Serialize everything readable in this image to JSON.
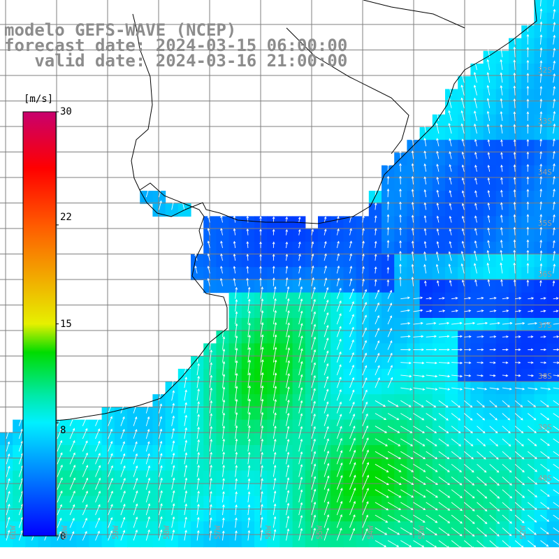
{
  "title": {
    "line1": "modelo GEFS-WAVE (NCEP)",
    "line2": "forecast date: 2024-03-15 06:00:00",
    "line3": "   valid date: 2024-03-16 21:00:00"
  },
  "colorbar": {
    "unit": "[m/s]",
    "ticks": [
      "30",
      "22",
      "15",
      "8",
      "0"
    ],
    "tick_values": [
      30,
      22,
      15,
      8,
      0
    ],
    "colors": [
      "#cc0066",
      "#ff0000",
      "#ff8800",
      "#ffee00",
      "#00dd00",
      "#00ffff",
      "#0000ff"
    ]
  },
  "map_labels": {
    "lat_labels": [
      "32S",
      "33S",
      "34S",
      "35S",
      "36S",
      "37S",
      "38S",
      "39S",
      "40S"
    ],
    "lon_labels": [
      "61W",
      "60W",
      "59W",
      "58W",
      "57W",
      "56W",
      "55W",
      "54W",
      "53W",
      "52W"
    ]
  },
  "colors": {
    "land": "#ffffff",
    "coast": "#000000",
    "grid": "#7f7f7f",
    "vector": "#ffffff",
    "title": "#8c8c8c"
  }
}
